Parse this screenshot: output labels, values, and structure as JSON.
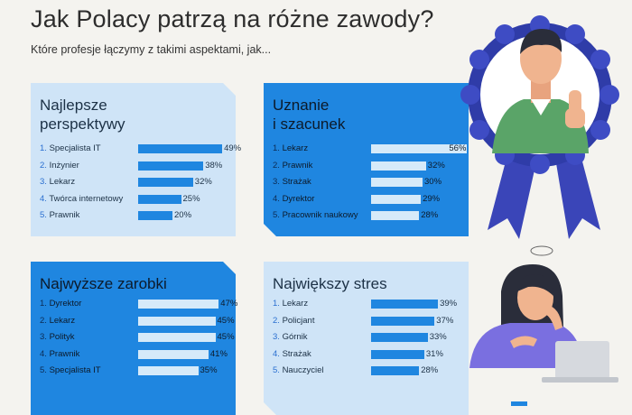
{
  "title": "Jak Polacy patrzą na różne zawody?",
  "subtitle": "Które profesje łączymy z takimi aspektami, jak...",
  "colors": {
    "accent": "#1f86e0",
    "light_card": "#cfe4f7",
    "background": "#f4f3ef"
  },
  "chart_data": [
    {
      "type": "bar",
      "title": "Najlepsze\nperspektywy",
      "categories": [
        "1. Specjalista IT",
        "2. Inżynier",
        "3. Lekarz",
        "4. Twórca internetowy",
        "5. Prawnik"
      ],
      "values": [
        49,
        38,
        32,
        25,
        20
      ],
      "value_labels": [
        "49%",
        "38%",
        "32%",
        "25%",
        "20%"
      ],
      "unit": "%",
      "xlim": [
        0,
        60
      ]
    },
    {
      "type": "bar",
      "title": "Uznanie\ni szacunek",
      "categories": [
        "1. Lekarz",
        "2. Prawnik",
        "3. Strażak",
        "4. Dyrektor",
        "5. Pracownik naukowy"
      ],
      "values": [
        56,
        32,
        30,
        29,
        28
      ],
      "value_labels": [
        "56%",
        "32%",
        "30%",
        "29%",
        "28%"
      ],
      "unit": "%",
      "xlim": [
        0,
        60
      ]
    },
    {
      "type": "bar",
      "title": "Najwyższe zarobki",
      "categories": [
        "1. Dyrektor",
        "2. Lekarz",
        "3. Polityk",
        "4. Prawnik",
        "5. Specjalista IT"
      ],
      "values": [
        47,
        45,
        45,
        41,
        35
      ],
      "value_labels": [
        "47%",
        "45%",
        "45%",
        "41%",
        "35%"
      ],
      "unit": "%",
      "xlim": [
        0,
        60
      ]
    },
    {
      "type": "bar",
      "title": "Największy stres",
      "categories": [
        "1. Lekarz",
        "2. Policjant",
        "3. Górnik",
        "4. Strażak",
        "5. Nauczyciel"
      ],
      "values": [
        39,
        37,
        33,
        31,
        28
      ],
      "value_labels": [
        "39%",
        "37%",
        "33%",
        "31%",
        "28%"
      ],
      "unit": "%",
      "xlim": [
        0,
        60
      ]
    }
  ]
}
